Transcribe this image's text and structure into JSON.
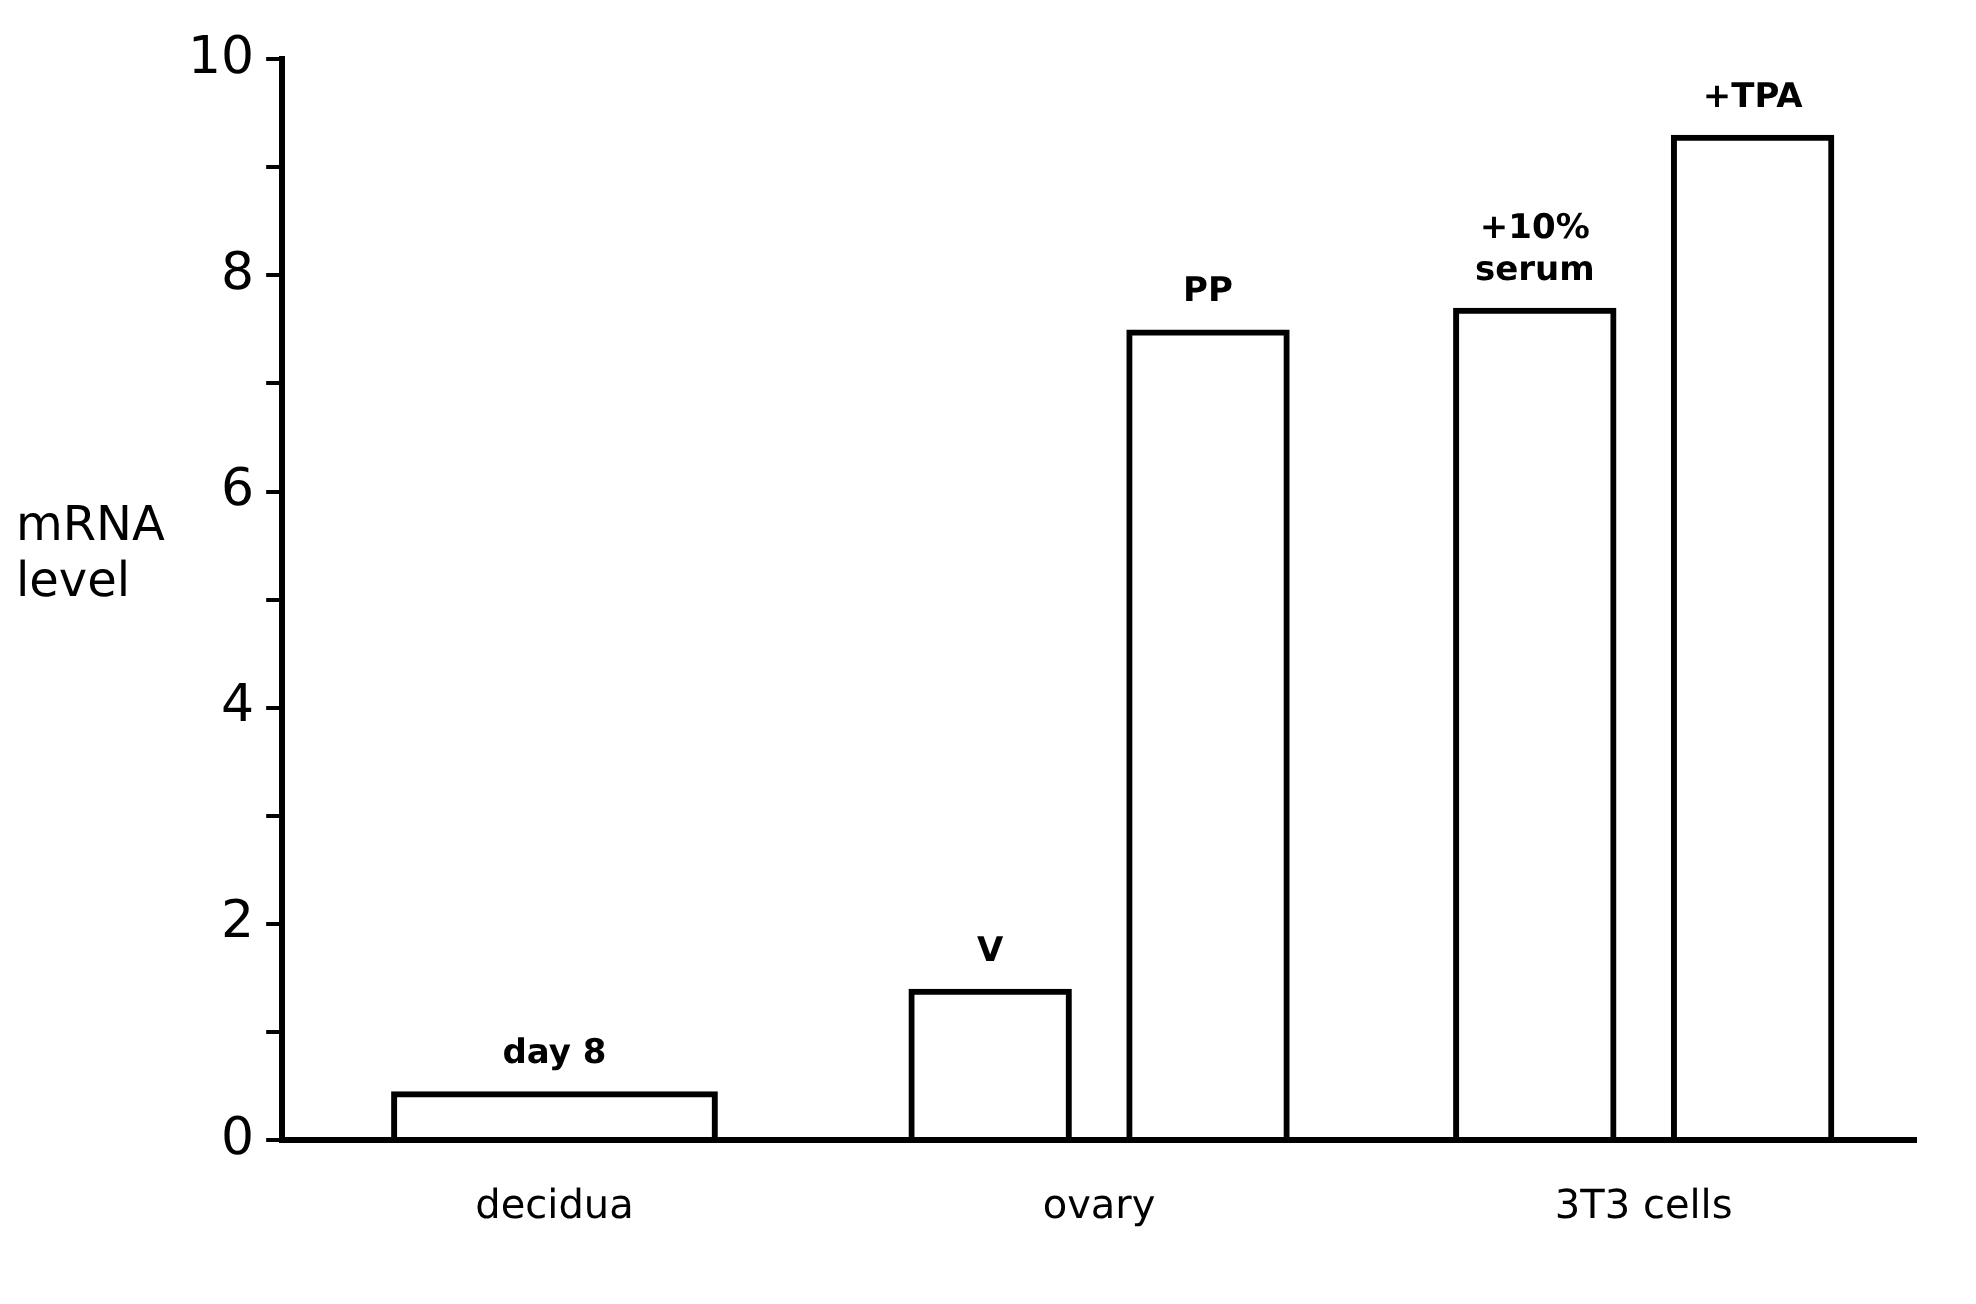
{
  "chart_data": {
    "type": "bar",
    "ylabel": "mRNA level",
    "categories": [
      "decidua",
      "ovary",
      "3T3 cells"
    ],
    "series": [
      {
        "name": "day 8",
        "color": "#000000",
        "values": [
          0.45,
          null,
          null
        ]
      },
      {
        "name": "V",
        "color": "#000000",
        "values": [
          null,
          1.4,
          null
        ]
      },
      {
        "name": "PP",
        "color": "#000000",
        "values": [
          null,
          7.5,
          null
        ]
      },
      {
        "name": "+10% serum",
        "color": "#000000",
        "values": [
          null,
          null,
          7.7
        ]
      },
      {
        "name": "+TPA",
        "color": "#000000",
        "values": [
          null,
          null,
          9.3
        ]
      }
    ],
    "ylim": [
      0,
      10
    ],
    "yticks": [
      0,
      {
        "value": 1,
        "label": null
      },
      2,
      {
        "value": 3,
        "label": null
      },
      4,
      {
        "value": 5,
        "label": null
      },
      6,
      {
        "value": 7,
        "label": null
      },
      8,
      {
        "value": 9,
        "label": null
      },
      10
    ],
    "grid": false,
    "legend": false
  }
}
